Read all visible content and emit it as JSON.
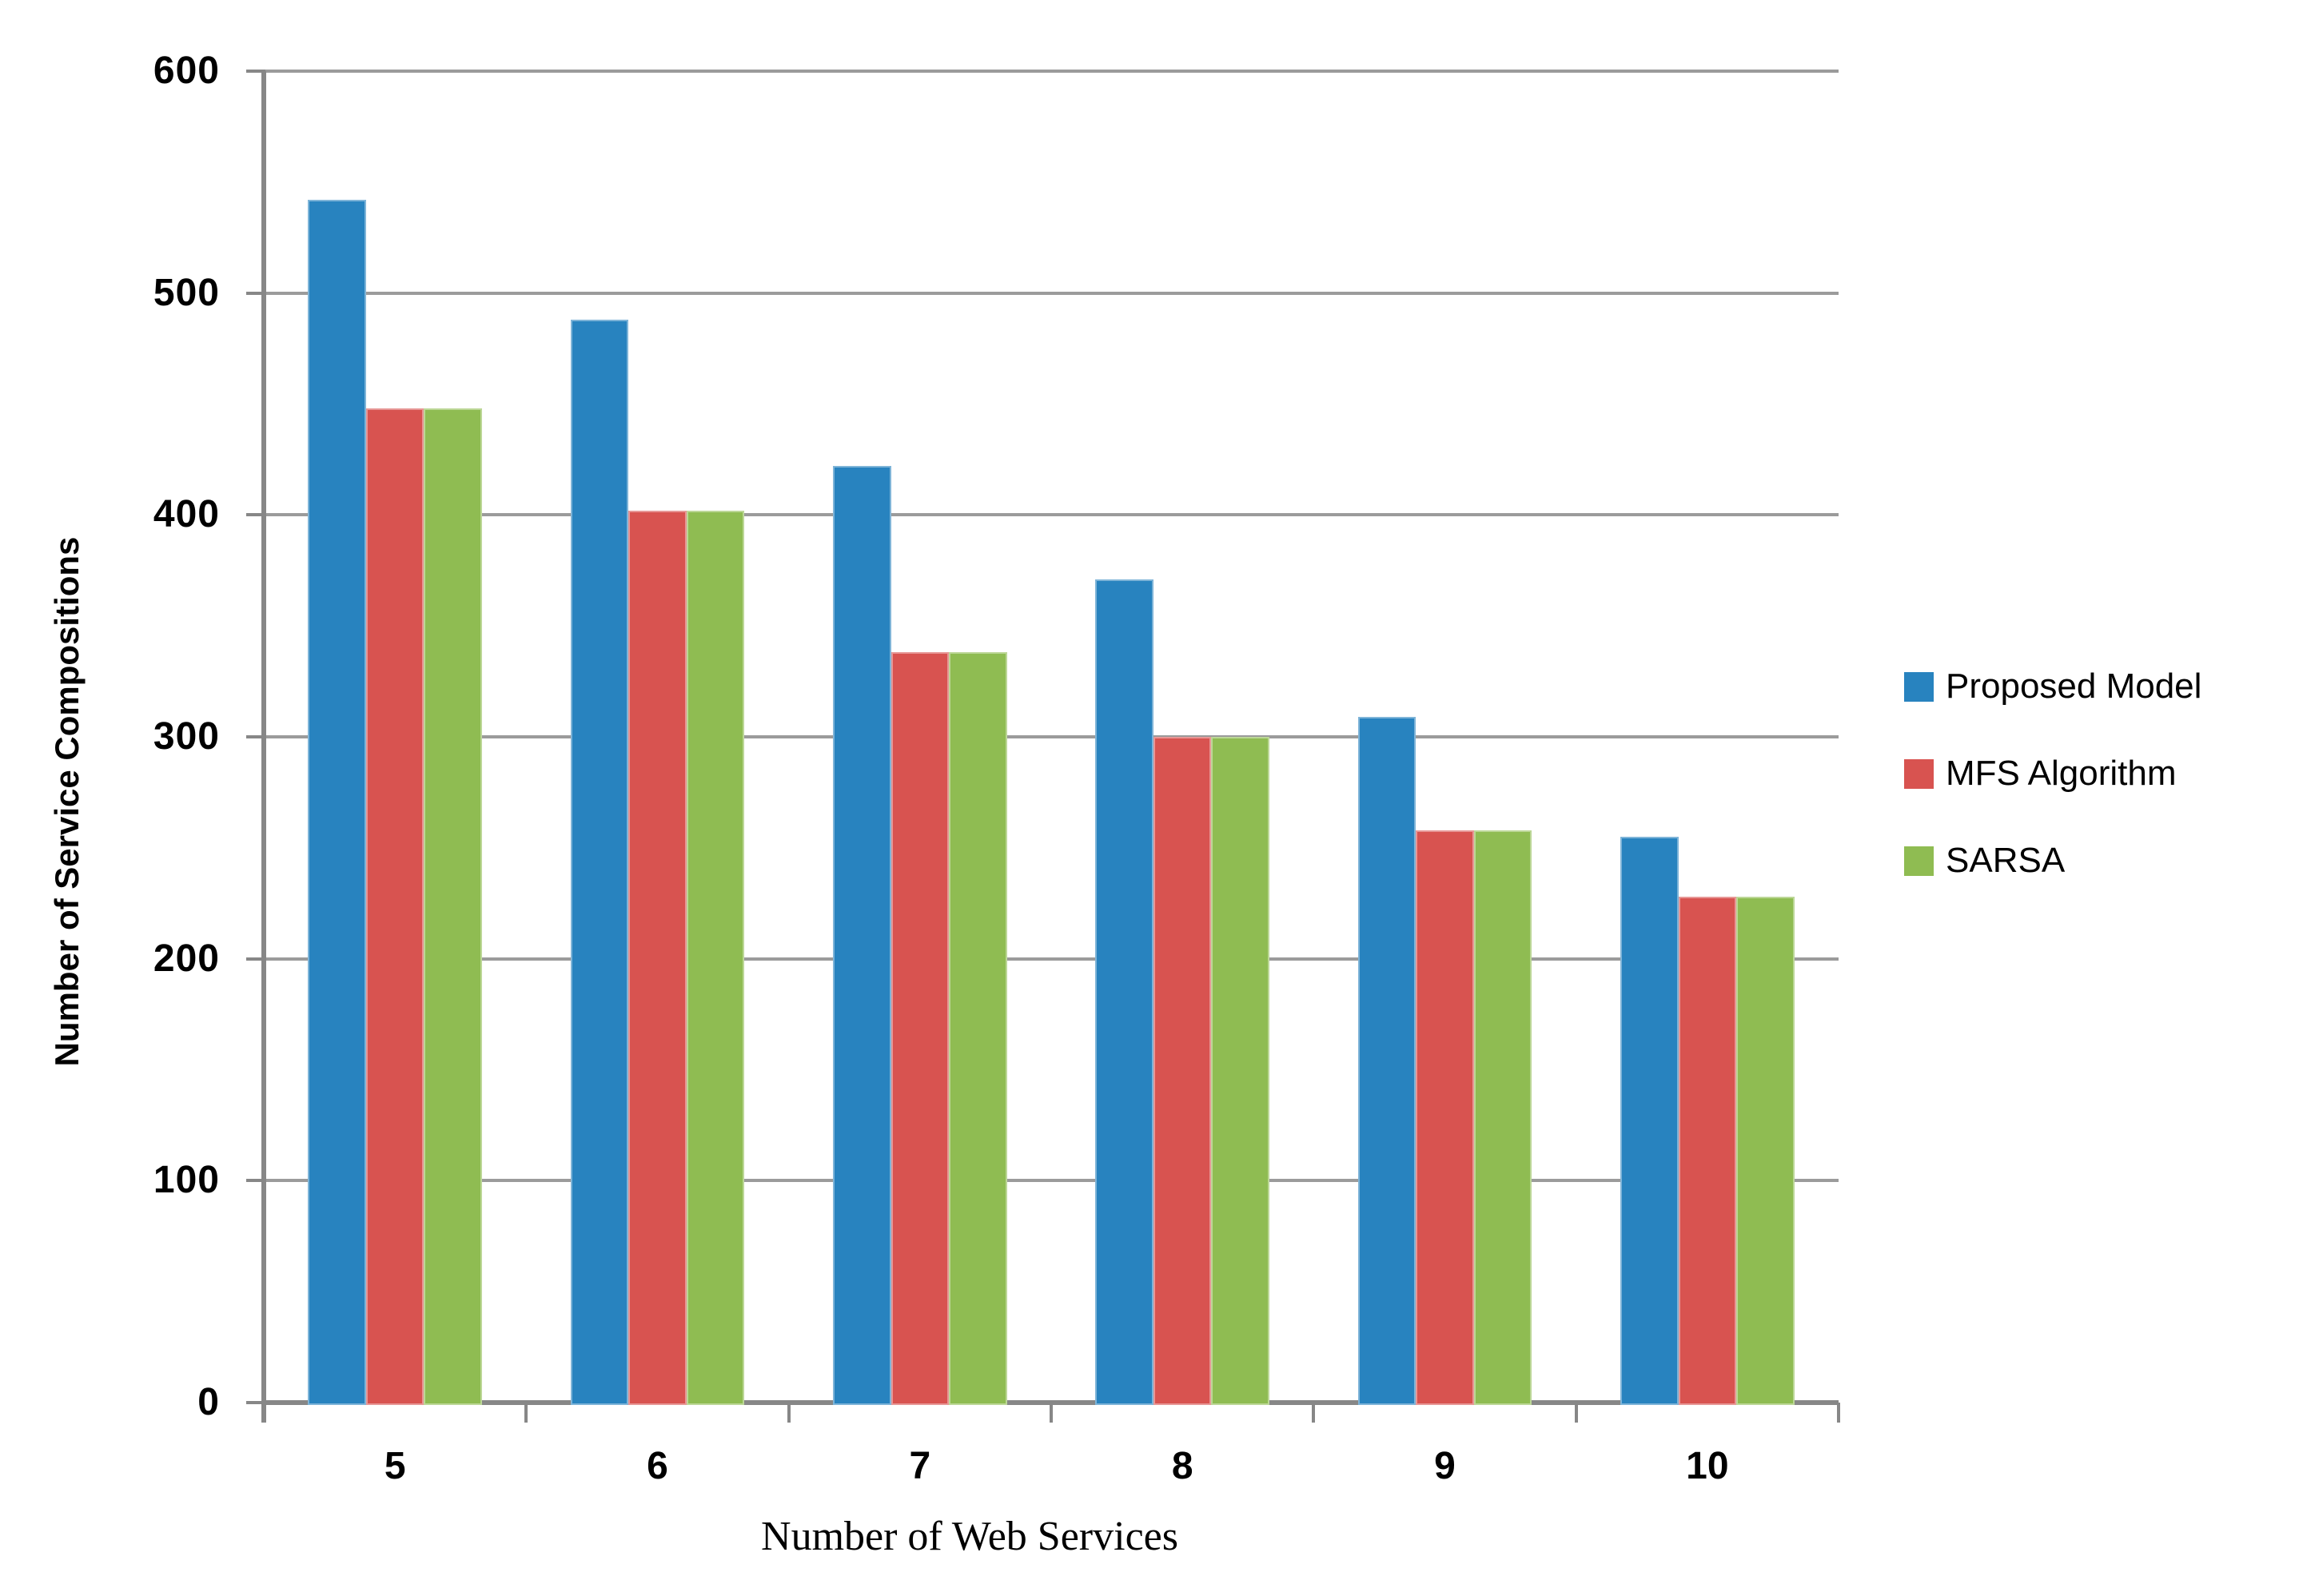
{
  "chart_data": {
    "type": "bar",
    "title": "",
    "xlabel": "Number of Web Services",
    "ylabel": "Number of Service Compositions",
    "categories": [
      "5",
      "6",
      "7",
      "8",
      "9",
      "10"
    ],
    "series": [
      {
        "name": "Proposed Model",
        "color": "#2883BF",
        "values": [
          542,
          488,
          422,
          371,
          309,
          255
        ]
      },
      {
        "name": "MFS Algorithm",
        "color": "#D85350",
        "values": [
          448,
          402,
          338,
          300,
          258,
          228
        ]
      },
      {
        "name": "SARSA",
        "color": "#8FBC52",
        "values": [
          448,
          402,
          338,
          300,
          258,
          228
        ]
      }
    ],
    "ylim": [
      0,
      600
    ],
    "ytick_step": 100,
    "yticks": [
      "0",
      "100",
      "200",
      "300",
      "400",
      "500",
      "600"
    ],
    "grid": "horizontal-only",
    "legend_position": "right-middle"
  },
  "colors": {
    "gridline": "#9B9B9B",
    "axis": "#878787",
    "text": "#000000",
    "background": "#FFFFFF"
  }
}
